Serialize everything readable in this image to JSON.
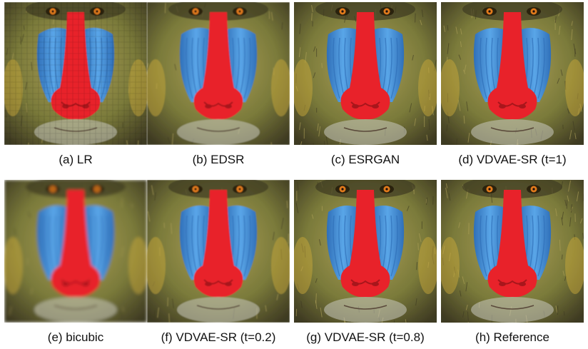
{
  "figure": {
    "panels": [
      {
        "caption": "(a) LR",
        "style": "pixelated"
      },
      {
        "caption": "(b) EDSR",
        "style": "smooth"
      },
      {
        "caption": "(c) ESRGAN",
        "style": "sharp"
      },
      {
        "caption": "(d) VDVAE-SR (t=1)",
        "style": "sharp"
      },
      {
        "caption": "(e) bicubic",
        "style": "blurry"
      },
      {
        "caption": "(f) VDVAE-SR (t=0.2)",
        "style": "smooth"
      },
      {
        "caption": "(g) VDVAE-SR (t=0.8)",
        "style": "sharp"
      },
      {
        "caption": "(h) Reference",
        "style": "sharp"
      }
    ],
    "colors": {
      "fur": "#7a7a3a",
      "fur_dark": "#3e3a22",
      "fur_light": "#b0a25a",
      "cheek_blue": "#5aa6e8",
      "cheek_blue_dark": "#2f6fb8",
      "nose_red": "#e8242a",
      "nose_red_dark": "#a8141a",
      "eye": "#e07a1a",
      "beard": "#c8c8c0"
    }
  }
}
